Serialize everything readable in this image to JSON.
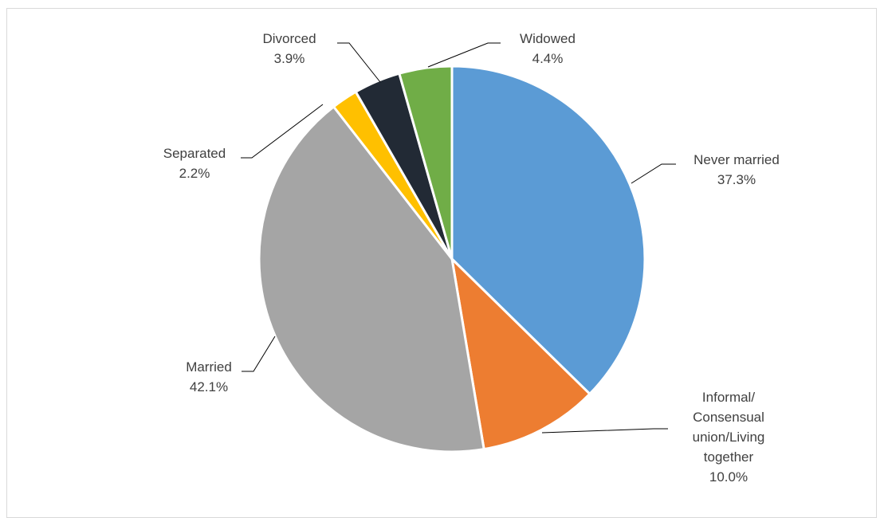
{
  "chart_data": {
    "type": "pie",
    "title": "",
    "slices": [
      {
        "label": [
          "Never married"
        ],
        "value": 37.3,
        "display": "37.3%",
        "color": "#5b9bd5"
      },
      {
        "label": [
          "Informal/",
          "Consensual",
          "union/Living",
          "together"
        ],
        "value": 10.0,
        "display": "10.0%",
        "color": "#ed7d31"
      },
      {
        "label": [
          "Married"
        ],
        "value": 42.1,
        "display": "42.1%",
        "color": "#a5a5a5"
      },
      {
        "label": [
          "Separated"
        ],
        "value": 2.2,
        "display": "2.2%",
        "color": "#ffc000"
      },
      {
        "label": [
          "Divorced"
        ],
        "value": 3.9,
        "display": "3.9%",
        "color": "#222a35"
      },
      {
        "label": [
          "Widowed"
        ],
        "value": 4.4,
        "display": "4.4%",
        "color": "#70ad47"
      }
    ],
    "legend": "none",
    "data_labels": "outside-with-leader-lines"
  }
}
